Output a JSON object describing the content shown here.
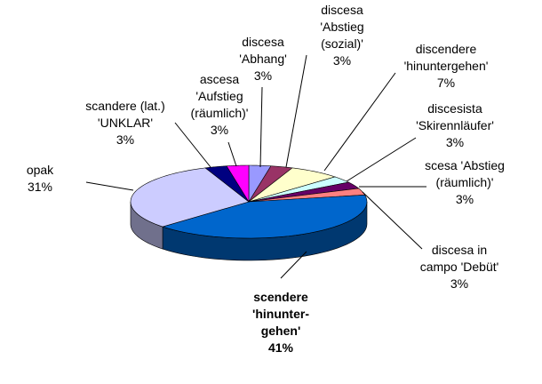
{
  "chart_data": {
    "type": "pie3d",
    "categories": [
      "discesa 'Abhang'",
      "discesa 'Abstieg (sozial)'",
      "discendere 'hinuntergehen'",
      "discesista 'Skirennläufer'",
      "scesa 'Abstieg (räumlich)'",
      "discesa in campo 'Debüt'",
      "scendere 'hinunter-gehen'",
      "opak",
      "scandere (lat.) 'UNKLAR'",
      "ascesa 'Aufstieg (räumlich)'"
    ],
    "values": [
      3,
      3,
      7,
      3,
      3,
      3,
      41,
      31,
      3,
      3
    ],
    "value_labels": [
      "3%",
      "3%",
      "7%",
      "3%",
      "3%",
      "3%",
      "41%",
      "31%",
      "3%",
      "3%"
    ],
    "colors": [
      "#9999ff",
      "#993366",
      "#ffffcc",
      "#ccffff",
      "#660066",
      "#ff8080",
      "#0066cc",
      "#ccccff",
      "#000080",
      "#ff00ff"
    ]
  }
}
